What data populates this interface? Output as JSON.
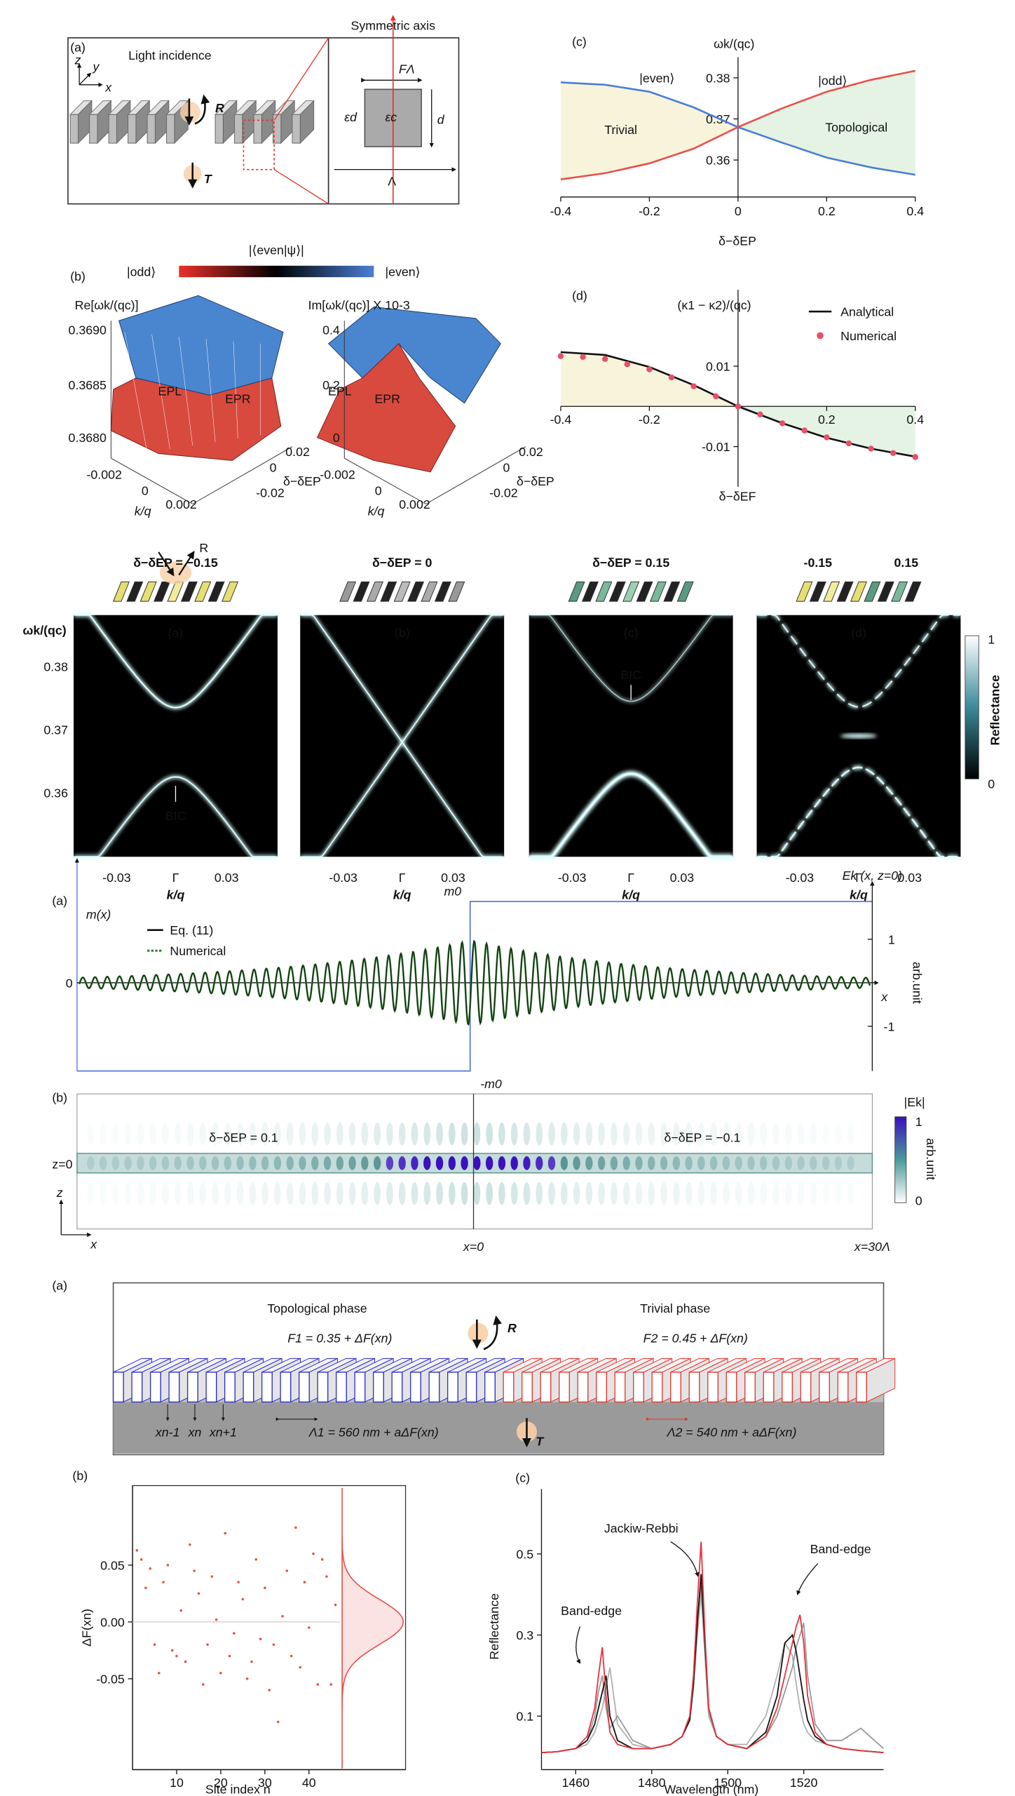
{
  "fig1a": {
    "label": "(a)",
    "light_incidence": "Light incidence",
    "R": "R",
    "T": "T",
    "symmetric_axis": "Symmetric axis",
    "F_lambda": "FΛ",
    "eps_d": "εd",
    "eps_c": "εc",
    "d": "d",
    "lambda": "Λ",
    "axes": [
      "z",
      "y",
      "x"
    ]
  },
  "fig1b": {
    "label": "(b)",
    "colorbar_title": "|⟨even|ψ⟩|",
    "colorbar_left": "|odd⟩",
    "colorbar_right": "|even⟩",
    "left": {
      "title": "Re[ωk/(qc)]",
      "z_ticks": [
        "0.3690",
        "0.3685",
        "0.3680"
      ],
      "k_ticks": [
        "-0.002",
        "0",
        "0.002"
      ],
      "d_ticks": [
        "0.02",
        "0",
        "-0.02"
      ],
      "k_label": "k/q",
      "d_label": "δ−δEP",
      "ep_left": "EPL",
      "ep_right": "EPR"
    },
    "right": {
      "title": "Im[ωk/(qc)] X 10-3",
      "z_ticks": [
        "0.4",
        "0.2",
        "0"
      ],
      "k_ticks": [
        "-0.002",
        "0",
        "0.002"
      ],
      "d_ticks": [
        "0.02",
        "0",
        "-0.02"
      ],
      "k_label": "k/q",
      "d_label": "δ−δEP",
      "ep_left": "EPL",
      "ep_right": "EPR"
    }
  },
  "fig2": {
    "panels": [
      {
        "header": "δ−δEP = −0.15",
        "label": "(a)",
        "annotation": "BIC"
      },
      {
        "header": "δ−δEP = 0",
        "label": "(b)"
      },
      {
        "header": "δ−δEP = 0.15",
        "label": "(c)",
        "annotation": "BIC"
      },
      {
        "headers": [
          "-0.15",
          "0.15"
        ],
        "label": "(d)"
      }
    ],
    "R": "R",
    "y_label": "ωk/(qc)",
    "y_ticks": [
      "0.38",
      "0.37",
      "0.36"
    ],
    "x_ticks": [
      "-0.03",
      "Γ",
      "0.03"
    ],
    "x_label": "k/q",
    "colorbar": {
      "title": "Reflectance",
      "max": "1",
      "min": "0"
    }
  },
  "fig3": {
    "a": {
      "label": "(a)",
      "left_axis": "m(x)",
      "legend": [
        "Eq. (11)",
        "Numerical"
      ],
      "zero": "0",
      "m0": "m0",
      "minus_m0": "-m0",
      "right_axis": "Ek (x, z=0)",
      "right_ticks": [
        "1",
        "-1"
      ],
      "x": "x",
      "unit": "arb.unit"
    },
    "b": {
      "label": "(b)",
      "left_text": "δ−δEP = 0.1",
      "right_text": "δ−δEP = −0.1",
      "z0": "z=0",
      "colorbar_title": "|Ek|",
      "colorbar_max": "1",
      "colorbar_min": "0",
      "unit": "arb.unit",
      "z": "z",
      "x": "x",
      "x_mid": "x=0",
      "x_end": "x=30Λ"
    }
  },
  "fig4a": {
    "label": "(a)",
    "left_phase": "Topological phase",
    "right_phase": "Trivial phase",
    "F1": "F1 = 0.35 + ΔF(xn)",
    "F2": "F2 = 0.45 + ΔF(xn)",
    "L1": "Λ1 = 560 nm + aΔF(xn)",
    "L2": "Λ2 = 540 nm + aΔF(xn)",
    "sites": [
      "xn-1",
      "xn",
      "xn+1"
    ],
    "R": "R",
    "T": "T"
  },
  "chart_data": [
    {
      "type": "line",
      "panel_label": "(c)",
      "y_label": "ωk/(qc)",
      "x_label": "δ−δEP",
      "x": [
        -0.4,
        -0.3,
        -0.2,
        -0.1,
        0,
        0.1,
        0.2,
        0.3,
        0.4
      ],
      "series": [
        {
          "name": "|even⟩",
          "color": "#4a7fd6",
          "values": [
            0.3789,
            0.3783,
            0.3766,
            0.3728,
            0.368,
            0.3642,
            0.3606,
            0.3582,
            0.3564
          ]
        },
        {
          "name": "|odd⟩",
          "color": "#e8504a",
          "values": [
            0.3553,
            0.3568,
            0.3592,
            0.3628,
            0.368,
            0.3726,
            0.3766,
            0.3795,
            0.3817
          ]
        }
      ],
      "annotations": [
        "Trivial",
        "Topological"
      ],
      "fill_colors": [
        "#f8f4dc",
        "#e4f3e3"
      ],
      "xlim": [
        -0.4,
        0.4
      ],
      "ylim": [
        0.351,
        0.385
      ],
      "xticks": [
        -0.4,
        -0.2,
        0,
        0.2,
        0.4
      ],
      "yticks": [
        0.36,
        0.37,
        0.38
      ]
    },
    {
      "type": "line",
      "panel_label": "(d)",
      "y_label": "(κ1 − κ2)/(qc)",
      "x_label": "δ−δEF",
      "x": [
        -0.4,
        -0.3,
        -0.2,
        -0.1,
        0,
        0.1,
        0.2,
        0.3,
        0.4
      ],
      "series": [
        {
          "name": "Analytical",
          "color": "#111111",
          "mode": "line",
          "values": [
            0.0135,
            0.0128,
            0.0098,
            0.0053,
            0,
            -0.0042,
            -0.0078,
            -0.0105,
            -0.0125
          ]
        },
        {
          "name": "Numerical",
          "color": "#e8506a",
          "mode": "markers",
          "x": [
            -0.4,
            -0.35,
            -0.3,
            -0.25,
            -0.2,
            -0.15,
            -0.1,
            -0.05,
            0,
            0.05,
            0.1,
            0.15,
            0.2,
            0.25,
            0.3,
            0.35,
            0.4
          ],
          "values": [
            0.0125,
            0.0123,
            0.0118,
            0.0105,
            0.0092,
            0.0072,
            0.005,
            0.0025,
            0,
            -0.002,
            -0.0042,
            -0.006,
            -0.0077,
            -0.0092,
            -0.0105,
            -0.0116,
            -0.0126
          ]
        }
      ],
      "legend": "upper right",
      "fill_colors": [
        "#f8f4dc",
        "#e4f3e3"
      ],
      "xlim": [
        -0.4,
        0.4
      ],
      "ylim": [
        -0.02,
        0.029
      ],
      "xticks": [
        -0.4,
        -0.2,
        0.2,
        0.4
      ],
      "yticks": [
        0.01,
        -0.01
      ]
    },
    {
      "type": "scatter",
      "panel_label": "(b)",
      "y_label": "ΔF(xn)",
      "x_label": "Site index n",
      "color": "#e8504a",
      "zero_line": true,
      "x": [
        1,
        2,
        3,
        4,
        5,
        6,
        7,
        8,
        9,
        10,
        11,
        12,
        13,
        14,
        15,
        16,
        17,
        18,
        19,
        20,
        21,
        22,
        23,
        24,
        25,
        26,
        27,
        28,
        29,
        30,
        31,
        32,
        33,
        34,
        35,
        36,
        37,
        38,
        39,
        40,
        41,
        42,
        43,
        44,
        45,
        46
      ],
      "values": [
        0.063,
        0.055,
        0.03,
        0.047,
        -0.02,
        -0.045,
        0.035,
        0.05,
        -0.025,
        -0.03,
        0.01,
        -0.035,
        0.068,
        0.045,
        0.025,
        -0.055,
        -0.02,
        0.04,
        0.002,
        -0.045,
        0.078,
        -0.03,
        -0.01,
        0.035,
        0.02,
        -0.05,
        -0.035,
        0.055,
        -0.015,
        0.03,
        -0.06,
        -0.02,
        -0.088,
        0.005,
        0.045,
        -0.03,
        0.083,
        -0.04,
        0.035,
        -0.005,
        0.06,
        -0.055,
        0.055,
        0.04,
        -0.055,
        0.015
      ],
      "xlim": [
        0,
        47
      ],
      "ylim": [
        -0.13,
        0.12
      ],
      "xticks": [
        10,
        20,
        30,
        40
      ],
      "yticks": [
        0.05,
        {
          "value": 0,
          "label": "0.00"
        },
        -0.05
      ]
    },
    {
      "type": "line",
      "panel_label": "(c)",
      "y_label": "Reflectance",
      "x_label": "Wavelength (nm)",
      "annotations": [
        "Band-edge",
        "Jackiw-Rebbi",
        "Band-edge"
      ],
      "x": [
        1451,
        1455,
        1460,
        1463,
        1465,
        1466,
        1467,
        1468,
        1469,
        1471,
        1475,
        1480,
        1485,
        1488,
        1490,
        1491,
        1492,
        1493,
        1494,
        1495,
        1497,
        1500,
        1505,
        1510,
        1513,
        1515,
        1517,
        1518,
        1519,
        1520,
        1521,
        1523,
        1526,
        1530,
        1535,
        1541
      ],
      "series": [
        {
          "color": "#b0b0b0",
          "values": [
            0.01,
            0.012,
            0.02,
            0.03,
            0.06,
            0.09,
            0.12,
            0.17,
            0.22,
            0.08,
            0.03,
            0.02,
            0.03,
            0.05,
            0.09,
            0.17,
            0.3,
            0.4,
            0.25,
            0.1,
            0.05,
            0.03,
            0.03,
            0.1,
            0.2,
            0.28,
            0.25,
            0.18,
            0.12,
            0.08,
            0.06,
            0.04,
            0.03,
            0.02,
            0.015,
            0.01
          ]
        },
        {
          "color": "#999999",
          "values": [
            0.01,
            0.012,
            0.02,
            0.04,
            0.1,
            0.16,
            0.2,
            0.12,
            0.07,
            0.1,
            0.04,
            0.02,
            0.03,
            0.05,
            0.1,
            0.2,
            0.34,
            0.42,
            0.26,
            0.11,
            0.05,
            0.03,
            0.02,
            0.05,
            0.1,
            0.16,
            0.22,
            0.27,
            0.3,
            0.33,
            0.2,
            0.08,
            0.04,
            0.04,
            0.07,
            0.02
          ]
        },
        {
          "color": "#111111",
          "values": [
            0.01,
            0.012,
            0.02,
            0.04,
            0.08,
            0.12,
            0.16,
            0.2,
            0.1,
            0.04,
            0.02,
            0.02,
            0.03,
            0.05,
            0.09,
            0.18,
            0.33,
            0.45,
            0.28,
            0.12,
            0.05,
            0.03,
            0.02,
            0.06,
            0.15,
            0.28,
            0.3,
            0.26,
            0.2,
            0.14,
            0.09,
            0.05,
            0.03,
            0.02,
            0.015,
            0.01
          ]
        },
        {
          "color": "#e8303a",
          "values": [
            0.01,
            0.012,
            0.02,
            0.05,
            0.12,
            0.2,
            0.27,
            0.15,
            0.06,
            0.03,
            0.02,
            0.02,
            0.03,
            0.05,
            0.1,
            0.2,
            0.38,
            0.53,
            0.3,
            0.12,
            0.05,
            0.03,
            0.02,
            0.05,
            0.12,
            0.2,
            0.28,
            0.32,
            0.35,
            0.28,
            0.15,
            0.06,
            0.03,
            0.02,
            0.015,
            0.01
          ]
        }
      ],
      "xlim": [
        1451,
        1541
      ],
      "ylim": [
        -0.032,
        0.66
      ],
      "xticks": [
        1460,
        1480,
        1500,
        1520
      ],
      "yticks": [
        0.1,
        0.3,
        0.5
      ]
    }
  ]
}
